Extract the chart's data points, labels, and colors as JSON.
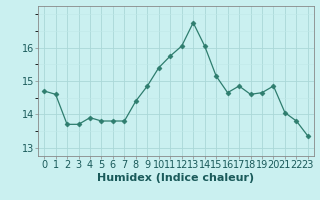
{
  "x": [
    0,
    1,
    2,
    3,
    4,
    5,
    6,
    7,
    8,
    9,
    10,
    11,
    12,
    13,
    14,
    15,
    16,
    17,
    18,
    19,
    20,
    21,
    22,
    23
  ],
  "y": [
    14.7,
    14.6,
    13.7,
    13.7,
    13.9,
    13.8,
    13.8,
    13.8,
    14.4,
    14.85,
    15.4,
    15.75,
    16.05,
    16.75,
    16.05,
    15.15,
    14.65,
    14.85,
    14.6,
    14.65,
    14.85,
    14.05,
    13.8,
    13.35
  ],
  "xlabel": "Humidex (Indice chaleur)",
  "ylim": [
    12.75,
    17.25
  ],
  "xlim": [
    -0.5,
    23.5
  ],
  "yticks": [
    13,
    14,
    15,
    16
  ],
  "ytick_labels": [
    "13",
    "14",
    "15",
    "16"
  ],
  "xticks": [
    0,
    1,
    2,
    3,
    4,
    5,
    6,
    7,
    8,
    9,
    10,
    11,
    12,
    13,
    14,
    15,
    16,
    17,
    18,
    19,
    20,
    21,
    22,
    23
  ],
  "line_color": "#2e7d6e",
  "marker": "D",
  "marker_size": 2.5,
  "bg_color": "#caf0f0",
  "grid_color_major": "#aad8d8",
  "grid_color_minor": "#c0e8e8",
  "xlabel_fontsize": 8,
  "tick_fontsize": 7,
  "spine_color": "#888888"
}
